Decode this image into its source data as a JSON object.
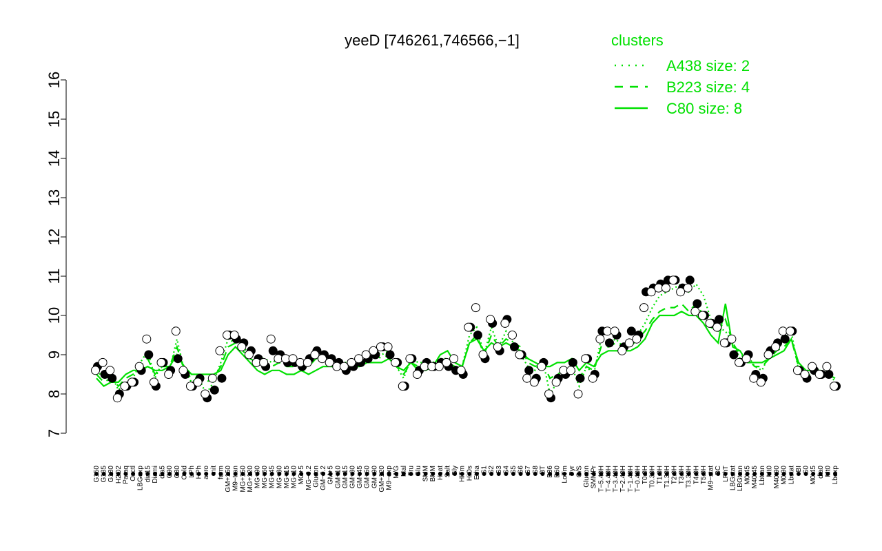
{
  "chart_data": {
    "type": "line",
    "title": "yeeD [746261,746566,−1]",
    "ylim": [
      7,
      16
    ],
    "yticks": [
      7,
      8,
      9,
      10,
      11,
      12,
      13,
      14,
      15,
      16
    ],
    "xtick_labels": [
      "G150",
      "G135",
      "G180",
      "H2O2",
      "Paraq",
      "Oxctl",
      "LBGexp",
      "dia15",
      "Diami",
      "dia5",
      "C90",
      "C30",
      "Cold",
      "LPh",
      "HPh",
      "aero",
      "nit",
      "ferm",
      "GM+150",
      "M9−tran",
      "MG+150",
      "MG+120",
      "MG+90",
      "MG+60",
      "MG+45",
      "MG+30",
      "MG+15",
      "MG+10",
      "MG+5",
      "MG−0.2",
      "Glucon",
      "GM−0.2",
      "GM+5",
      "GM+10",
      "GM+15",
      "GM+30",
      "GM+45",
      "GM+60",
      "GM+90",
      "GM+120",
      "M9−exp",
      "M/G",
      "Mal",
      "Fru",
      "Glu",
      "SMM",
      "BMM",
      "Heat",
      "Salt",
      "Gly",
      "HiTm",
      "HiOs",
      "Etha",
      "S1",
      "S2",
      "S3",
      "S4",
      "S5",
      "S6",
      "S7",
      "S8",
      "BT",
      "B36",
      "B60",
      "LoTm",
      "Pyr",
      "G/S",
      "Glucon",
      "SMMPr",
      "T−5.40H",
      "T−4.40H",
      "T−3.40H",
      "T−2.40H",
      "T−1.40H",
      "T−0.40H",
      "T0.0H",
      "T0.30H",
      "T1.0H",
      "T1.30H",
      "T2.0H",
      "T3.0H",
      "T3.30H",
      "T4.0H",
      "T5.0H",
      "M9−stat",
      "BC",
      "LPhT",
      "LBGstat",
      "LBGtran",
      "M0t45",
      "M40t45",
      "Lbtran",
      "Mt0",
      "M40t90",
      "M0t90",
      "Lbstat",
      "BI",
      "S0",
      "M0t45",
      "dia0",
      "Mt0",
      "Lbexp"
    ],
    "series": [
      {
        "name": "A438 size: 2",
        "style": "dotted",
        "values": [
          8.6,
          8.4,
          8.5,
          8.1,
          8.3,
          8.4,
          8.8,
          9.1,
          8.4,
          8.8,
          8.6,
          9.4,
          8.6,
          8.3,
          8.4,
          8.0,
          8.3,
          8.8,
          9.4,
          9.3,
          9.2,
          9.0,
          8.9,
          8.9,
          8.8,
          8.9,
          8.8,
          8.8,
          8.8,
          8.8,
          9.1,
          9.0,
          8.9,
          8.8,
          8.8,
          8.8,
          8.9,
          9.0,
          9.1,
          9.0,
          9.1,
          8.7,
          8.4,
          8.9,
          8.8,
          8.8,
          8.8,
          8.9,
          8.9,
          8.8,
          8.7,
          9.5,
          9.7,
          9.0,
          9.7,
          9.2,
          9.6,
          9.3,
          9.0,
          8.7,
          8.6,
          8.9,
          8.0,
          8.3,
          8.6,
          8.7,
          8.2,
          8.7,
          8.5,
          9.4,
          9.3,
          9.4,
          9.2,
          9.3,
          9.5,
          9.8,
          10.2,
          10.5,
          10.6,
          10.7,
          10.8,
          10.6,
          10.8,
          10.5,
          9.9,
          9.7,
          9.6,
          9.3,
          8.9,
          9.0,
          8.7,
          8.6,
          9.0,
          9.2,
          9.4,
          9.6,
          8.6,
          8.4,
          8.6,
          8.5,
          8.6,
          8.3
        ]
      },
      {
        "name": "B223 size: 4",
        "style": "dashed",
        "values": [
          8.5,
          8.3,
          8.4,
          8.2,
          8.4,
          8.5,
          8.7,
          8.9,
          8.5,
          8.7,
          8.7,
          9.2,
          8.6,
          8.4,
          8.4,
          8.3,
          8.4,
          8.7,
          9.2,
          9.3,
          9.1,
          8.9,
          8.8,
          8.8,
          8.7,
          8.8,
          8.7,
          8.7,
          8.7,
          8.7,
          8.9,
          8.9,
          8.8,
          8.8,
          8.7,
          8.8,
          8.8,
          8.9,
          9.0,
          8.9,
          9.0,
          8.7,
          8.5,
          8.8,
          8.7,
          8.7,
          8.7,
          8.8,
          8.8,
          8.7,
          8.7,
          9.3,
          9.5,
          9.0,
          9.5,
          9.2,
          9.4,
          9.3,
          9.2,
          8.8,
          8.7,
          8.8,
          8.4,
          8.5,
          8.6,
          8.7,
          8.4,
          8.7,
          8.6,
          9.2,
          9.2,
          9.3,
          9.2,
          9.2,
          9.4,
          9.6,
          9.9,
          10.1,
          10.2,
          10.2,
          10.3,
          10.1,
          10.3,
          10.0,
          9.7,
          9.6,
          9.9,
          9.3,
          9.0,
          8.9,
          8.7,
          8.7,
          8.9,
          9.1,
          9.2,
          9.4,
          8.7,
          8.5,
          8.6,
          8.6,
          8.5,
          8.4
        ]
      },
      {
        "name": "C80 size: 8",
        "style": "solid",
        "values": [
          8.4,
          8.2,
          8.3,
          8.3,
          8.5,
          8.6,
          8.6,
          8.7,
          8.6,
          8.6,
          8.7,
          9.0,
          8.7,
          8.5,
          8.5,
          8.5,
          8.5,
          8.6,
          9.0,
          9.2,
          9.0,
          8.8,
          8.6,
          8.5,
          8.6,
          8.6,
          8.5,
          8.5,
          8.6,
          8.5,
          8.6,
          8.7,
          8.7,
          8.7,
          8.6,
          8.7,
          8.7,
          8.8,
          8.8,
          8.8,
          8.9,
          8.7,
          8.6,
          8.8,
          8.6,
          8.6,
          8.7,
          9.0,
          9.1,
          8.8,
          8.7,
          9.3,
          9.4,
          9.1,
          9.3,
          9.2,
          9.3,
          9.2,
          9.1,
          8.9,
          8.8,
          8.7,
          8.7,
          8.8,
          8.8,
          8.9,
          8.6,
          8.8,
          8.7,
          9.0,
          9.1,
          9.1,
          9.1,
          9.1,
          9.2,
          9.4,
          9.8,
          10.0,
          10.0,
          10.0,
          10.1,
          10.0,
          10.0,
          9.8,
          9.5,
          9.3,
          10.3,
          9.2,
          9.1,
          8.8,
          8.8,
          8.8,
          8.9,
          9.0,
          9.1,
          9.4,
          8.8,
          8.6,
          8.6,
          8.6,
          8.5,
          8.4
        ]
      }
    ],
    "points_filled": [
      8.7,
      8.5,
      8.4,
      8.0,
      8.2,
      8.3,
      8.6,
      9.0,
      8.2,
      8.8,
      8.6,
      8.9,
      8.5,
      8.2,
      8.4,
      7.9,
      8.1,
      8.4,
      9.5,
      9.4,
      9.3,
      9.1,
      8.9,
      8.7,
      9.1,
      9.0,
      8.8,
      8.8,
      8.7,
      8.9,
      9.1,
      9.0,
      8.9,
      8.8,
      8.6,
      8.7,
      8.8,
      8.9,
      9.0,
      9.2,
      9.0,
      8.8,
      8.2,
      8.9,
      8.6,
      8.8,
      8.7,
      8.8,
      8.7,
      8.6,
      8.5,
      9.7,
      9.5,
      8.9,
      9.8,
      9.1,
      9.9,
      9.2,
      9.0,
      8.6,
      8.4,
      8.8,
      7.9,
      8.4,
      8.5,
      8.8,
      8.4,
      8.9,
      8.5,
      9.6,
      9.3,
      9.5,
      9.2,
      9.6,
      9.5,
      10.6,
      10.7,
      10.8,
      10.9,
      10.9,
      10.7,
      10.9,
      10.3,
      10.0,
      9.8,
      9.9,
      9.3,
      9.0,
      8.8,
      9.0,
      8.5,
      8.4,
      9.1,
      9.3,
      9.4,
      9.6,
      8.6,
      8.4,
      8.6,
      8.5,
      8.5,
      8.2
    ],
    "points_open": [
      8.6,
      8.8,
      8.6,
      7.9,
      8.2,
      8.3,
      8.7,
      9.4,
      8.3,
      8.8,
      8.5,
      9.6,
      8.6,
      8.2,
      8.3,
      8.0,
      8.4,
      9.1,
      9.5,
      9.5,
      9.2,
      9.0,
      8.8,
      8.8,
      9.4,
      8.9,
      8.9,
      8.9,
      8.8,
      8.8,
      9.0,
      8.9,
      8.8,
      8.7,
      8.7,
      8.8,
      8.9,
      9.0,
      9.1,
      9.2,
      9.2,
      8.8,
      8.2,
      8.9,
      8.5,
      8.7,
      8.7,
      8.7,
      8.8,
      8.9,
      8.6,
      9.7,
      10.2,
      9.0,
      9.9,
      9.2,
      9.8,
      9.5,
      9.0,
      8.4,
      8.3,
      8.7,
      8.0,
      8.3,
      8.6,
      8.6,
      8.0,
      8.9,
      8.4,
      9.4,
      9.6,
      9.6,
      9.1,
      9.3,
      9.4,
      10.2,
      10.6,
      10.7,
      10.7,
      10.9,
      10.6,
      10.7,
      10.1,
      10.0,
      9.8,
      9.7,
      9.3,
      9.4,
      8.8,
      8.9,
      8.4,
      8.3,
      9.0,
      9.2,
      9.6,
      9.6,
      8.6,
      8.5,
      8.7,
      8.5,
      8.7,
      8.2
    ],
    "legend": {
      "title": "clusters",
      "placement": "top-right",
      "entries": [
        "A438 size: 2",
        "B223 size: 4",
        "C80 size: 8"
      ]
    },
    "colors": {
      "series": "#00e000",
      "legend": "#00e000",
      "axis": "#000000",
      "points": "#000000"
    }
  }
}
